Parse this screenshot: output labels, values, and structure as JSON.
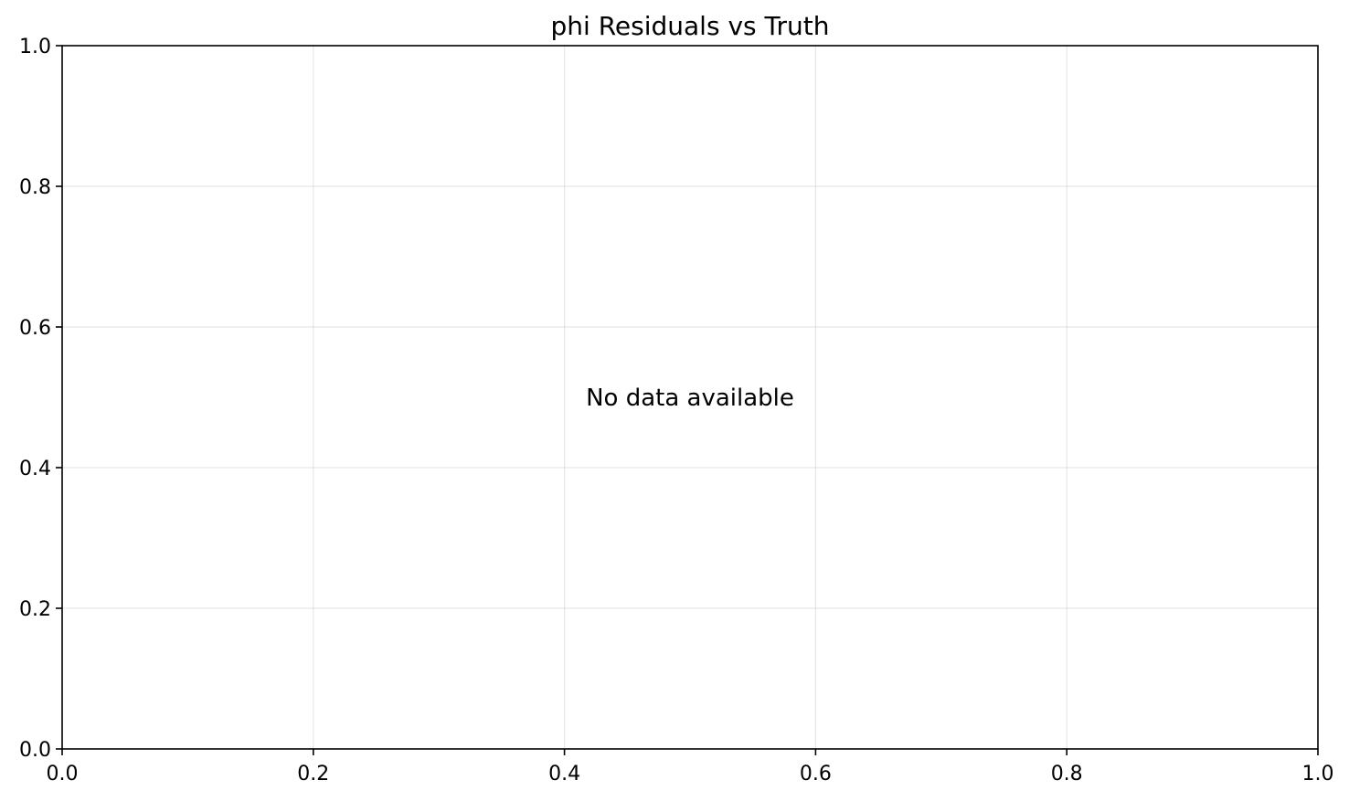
{
  "chart_data": {
    "type": "scatter",
    "title": "phi Residuals vs Truth",
    "xlabel": "",
    "ylabel": "",
    "xlim": [
      0.0,
      1.0
    ],
    "ylim": [
      0.0,
      1.0
    ],
    "x_ticks": [
      0.0,
      0.2,
      0.4,
      0.6,
      0.8,
      1.0
    ],
    "y_ticks": [
      0.0,
      0.2,
      0.4,
      0.6,
      0.8,
      1.0
    ],
    "x_tick_labels": [
      "0.0",
      "0.2",
      "0.4",
      "0.6",
      "0.8",
      "1.0"
    ],
    "y_tick_labels": [
      "0.0",
      "0.2",
      "0.4",
      "0.6",
      "0.8",
      "1.0"
    ],
    "grid": true,
    "series": [],
    "annotation": "No data available"
  }
}
